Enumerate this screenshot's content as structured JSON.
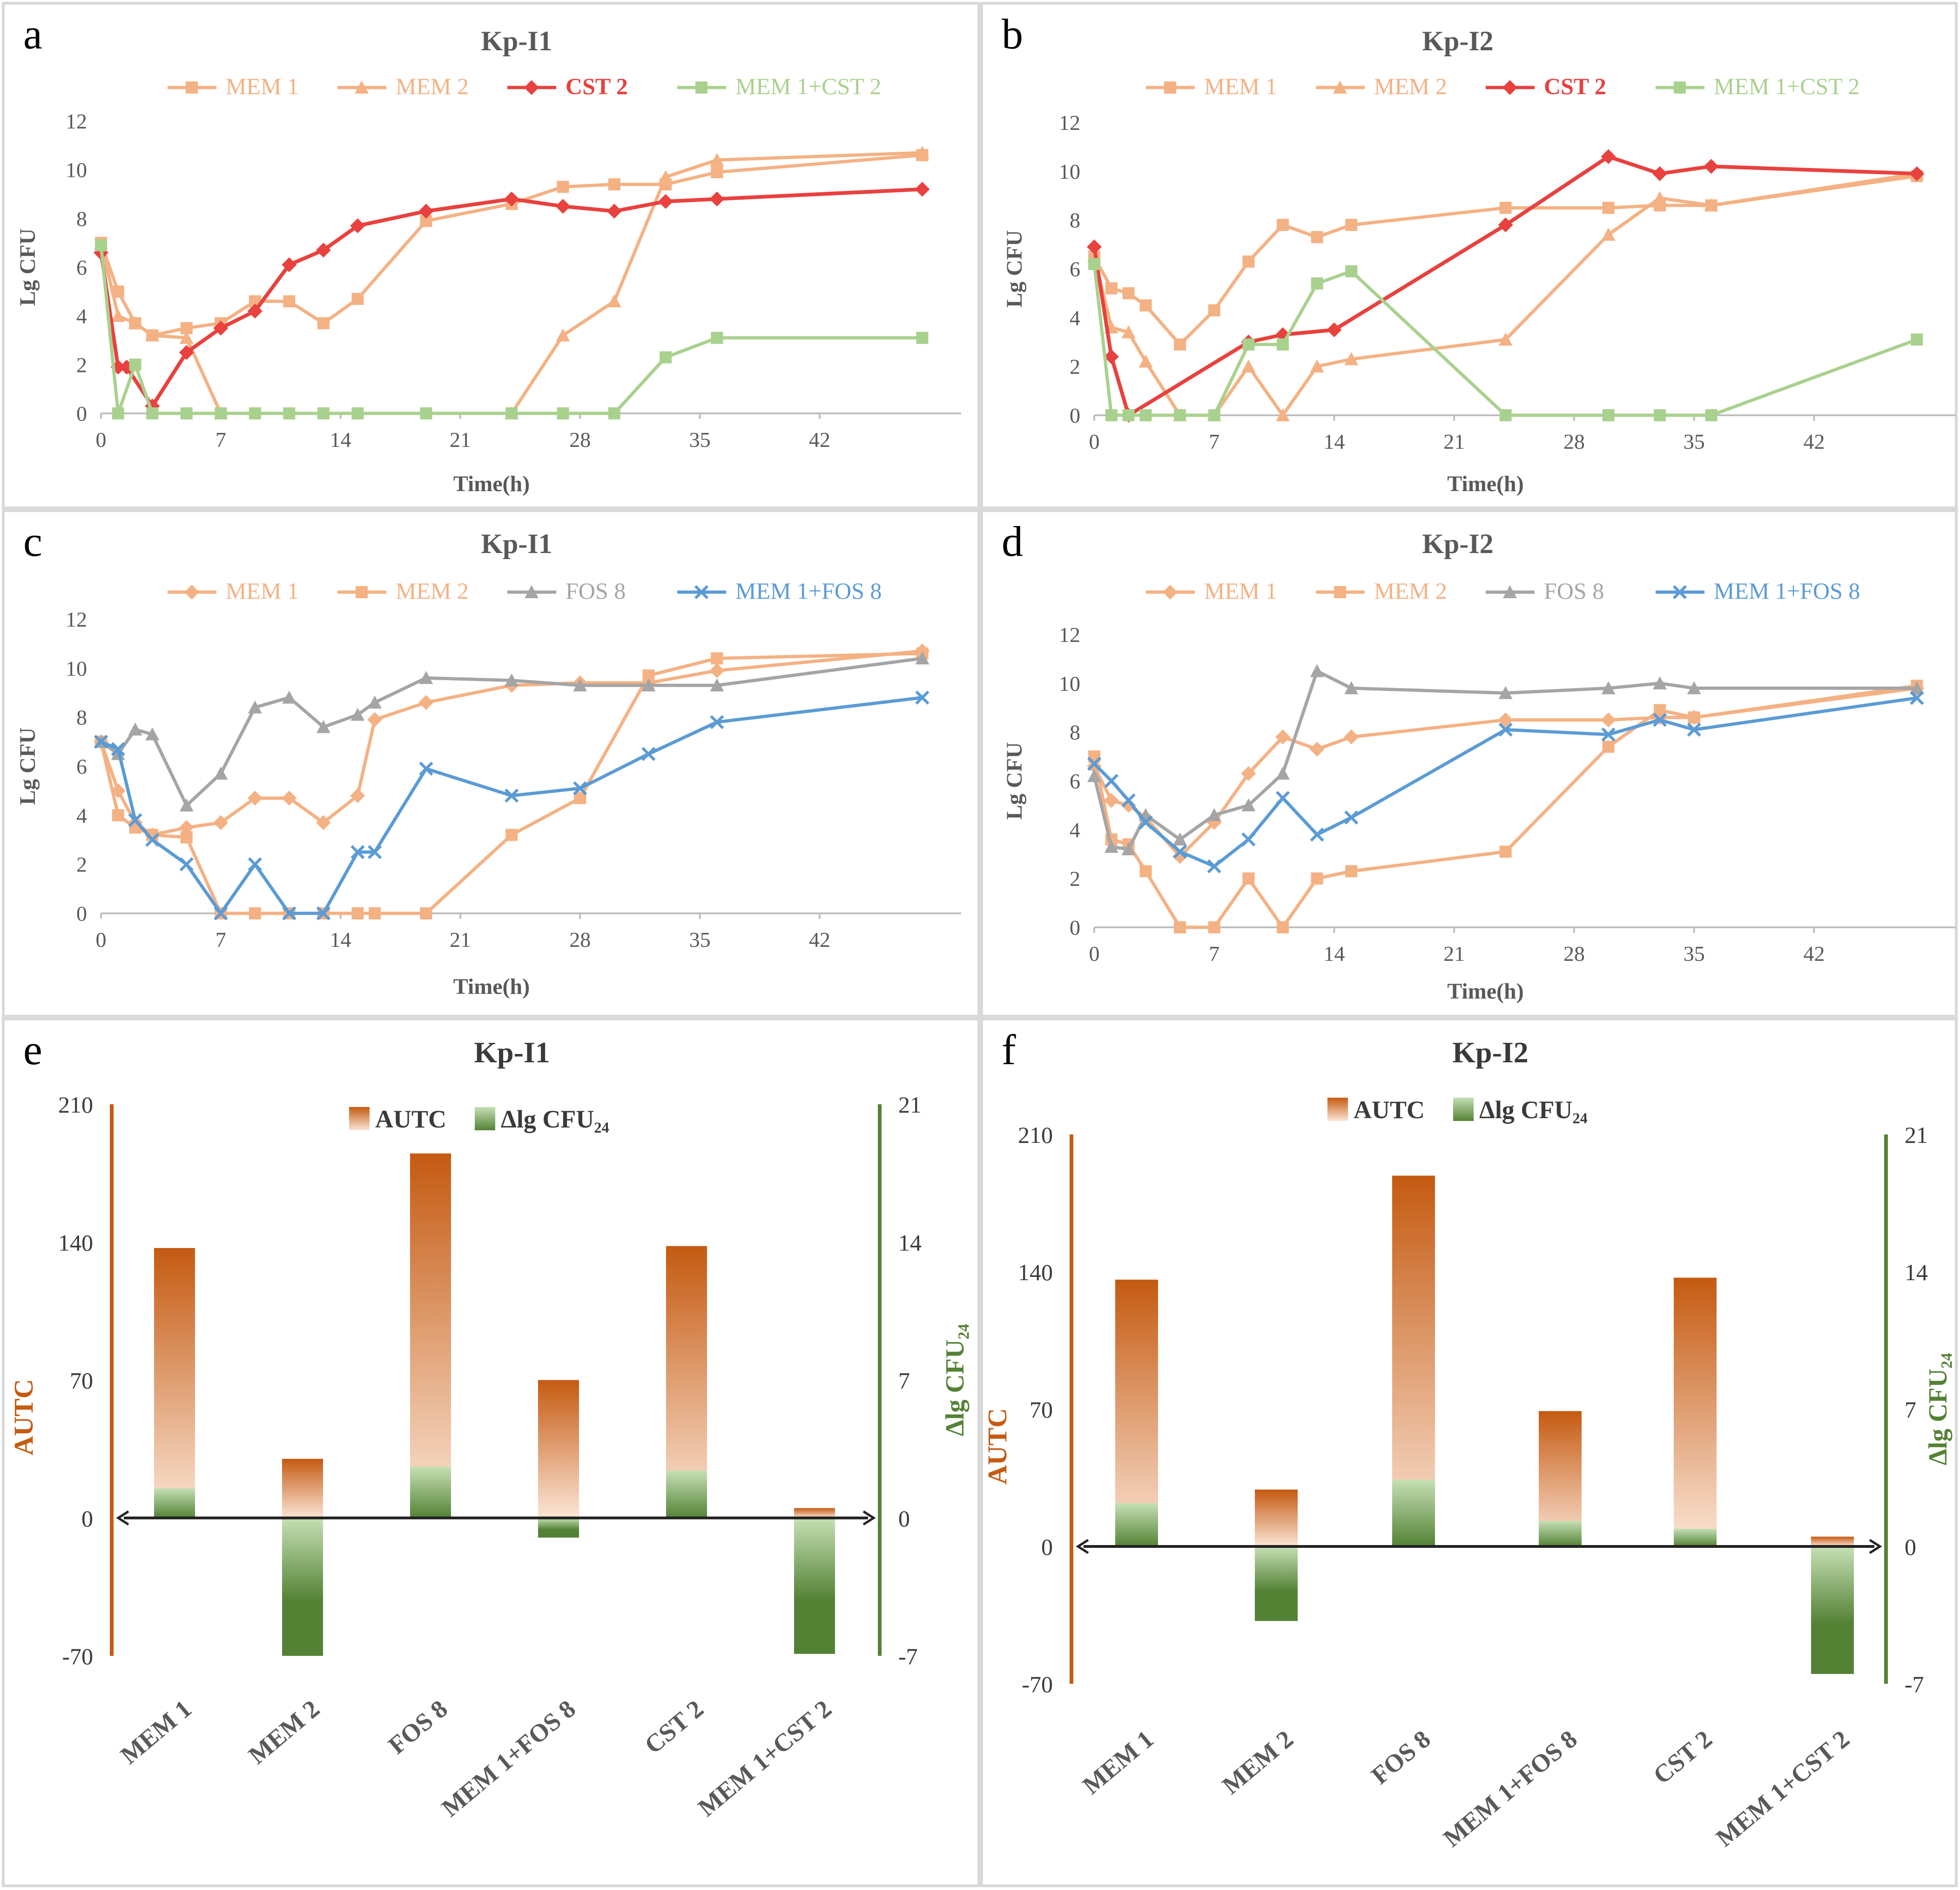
{
  "colors": {
    "mem1": "#F4B183",
    "mem2": "#F4B183",
    "cst2": "#E8413E",
    "mem1cst2": "#A9D18E",
    "fos8": "#A5A5A5",
    "mem1fos8": "#5B9BD5",
    "autc_dark": "#C55A11",
    "autc_light": "#FBE5D6",
    "dlg_dark": "#548235",
    "dlg_light": "#C5E0B4",
    "axis_orange": "#C55A11",
    "axis_green": "#548235",
    "text_gray": "#595959",
    "grid_axis": "#BFBFBF"
  },
  "chart_data": [
    {
      "panel": "a",
      "type": "line",
      "title": "Kp-I1",
      "xlabel": "Time(h)",
      "ylabel": "Lg CFU",
      "xlim": [
        0,
        50
      ],
      "ylim": [
        0,
        12
      ],
      "xticks": [
        "0",
        "7",
        "14",
        "21",
        "28",
        "35",
        "42"
      ],
      "yticks": [
        "0",
        "2",
        "4",
        "6",
        "8",
        "10",
        "12"
      ],
      "series": [
        {
          "name": "MEM 1",
          "marker": "square",
          "color_key": "mem1",
          "x": [
            0,
            1,
            2,
            3,
            5,
            7,
            9,
            11,
            13,
            15,
            19,
            24,
            27,
            30,
            33,
            36,
            48
          ],
          "y": [
            7.0,
            5.0,
            3.7,
            3.2,
            3.5,
            3.7,
            4.6,
            4.6,
            3.7,
            4.7,
            7.9,
            8.6,
            9.3,
            9.4,
            9.4,
            9.9,
            10.6
          ]
        },
        {
          "name": "MEM 2",
          "marker": "triangle",
          "color_key": "mem2",
          "x": [
            0,
            1,
            2,
            3,
            5,
            7,
            24,
            27,
            30,
            33,
            36,
            48
          ],
          "y": [
            7.0,
            4.0,
            3.7,
            3.2,
            3.1,
            0,
            0,
            3.2,
            4.6,
            9.7,
            10.4,
            10.7
          ]
        },
        {
          "name": "CST 2",
          "marker": "diamond",
          "color_key": "cst2",
          "x": [
            0,
            1,
            1.5,
            3,
            5,
            7,
            9,
            11,
            13,
            15,
            19,
            24,
            27,
            30,
            33,
            36,
            48
          ],
          "y": [
            6.6,
            1.9,
            1.9,
            0.3,
            2.5,
            3.5,
            4.2,
            6.1,
            6.7,
            7.7,
            8.3,
            8.8,
            8.5,
            8.3,
            8.7,
            8.8,
            9.2
          ]
        },
        {
          "name": "MEM 1+CST 2",
          "marker": "square",
          "color_key": "mem1cst2",
          "x": [
            0,
            1,
            2,
            3,
            5,
            7,
            9,
            11,
            13,
            15,
            19,
            24,
            27,
            30,
            33,
            36,
            48
          ],
          "y": [
            6.9,
            0,
            2.0,
            0,
            0,
            0,
            0,
            0,
            0,
            0,
            0,
            0,
            0,
            0,
            2.3,
            3.1,
            3.1
          ]
        }
      ]
    },
    {
      "panel": "b",
      "type": "line",
      "title": "Kp-I2",
      "xlabel": "Time(h)",
      "ylabel": "Lg CFU",
      "xlim": [
        0,
        50
      ],
      "ylim": [
        0,
        12
      ],
      "xticks": [
        "0",
        "7",
        "14",
        "21",
        "28",
        "35",
        "42"
      ],
      "yticks": [
        "0",
        "2",
        "4",
        "6",
        "8",
        "10",
        "12"
      ],
      "series": [
        {
          "name": "MEM 1",
          "marker": "square",
          "color_key": "mem1",
          "x": [
            0,
            1,
            2,
            3,
            5,
            7,
            9,
            11,
            13,
            15,
            24,
            30,
            33,
            36,
            48
          ],
          "y": [
            6.5,
            5.2,
            5.0,
            4.5,
            2.9,
            4.3,
            6.3,
            7.8,
            7.3,
            7.8,
            8.5,
            8.5,
            8.6,
            8.6,
            9.8
          ]
        },
        {
          "name": "MEM 2",
          "marker": "triangle",
          "color_key": "mem2",
          "x": [
            0,
            1,
            2,
            3,
            5,
            7,
            9,
            11,
            13,
            15,
            24,
            30,
            33,
            36,
            48
          ],
          "y": [
            6.5,
            3.6,
            3.4,
            2.2,
            0,
            0,
            2.0,
            0,
            2.0,
            2.3,
            3.1,
            7.4,
            8.9,
            8.6,
            9.9
          ]
        },
        {
          "name": "CST 2",
          "marker": "diamond",
          "color_key": "cst2",
          "x": [
            0,
            1,
            2,
            9,
            11,
            14,
            24,
            30,
            33,
            36,
            48
          ],
          "y": [
            6.9,
            2.4,
            0,
            3.0,
            3.3,
            3.5,
            7.8,
            10.6,
            9.9,
            10.2,
            9.9
          ]
        },
        {
          "name": "MEM 1+CST 2",
          "marker": "square",
          "color_key": "mem1cst2",
          "x": [
            0,
            1,
            2,
            3,
            5,
            7,
            9,
            11,
            13,
            15,
            24,
            30,
            33,
            36,
            48
          ],
          "y": [
            6.2,
            0,
            0,
            0,
            0,
            0,
            2.9,
            2.9,
            5.4,
            5.9,
            0,
            0,
            0,
            0,
            3.1
          ]
        }
      ]
    },
    {
      "panel": "c",
      "type": "line",
      "title": "Kp-I1",
      "xlabel": "Time(h)",
      "ylabel": "Lg CFU",
      "xlim": [
        0,
        50
      ],
      "ylim": [
        0,
        12
      ],
      "xticks": [
        "0",
        "7",
        "14",
        "21",
        "28",
        "35",
        "42"
      ],
      "yticks": [
        "0",
        "2",
        "4",
        "6",
        "8",
        "10",
        "12"
      ],
      "series": [
        {
          "name": "MEM 1",
          "marker": "diamond",
          "color_key": "mem1",
          "x": [
            0,
            1,
            2,
            3,
            5,
            7,
            9,
            11,
            13,
            15,
            16,
            19,
            24,
            28,
            32,
            36,
            48
          ],
          "y": [
            7.0,
            5.0,
            3.7,
            3.2,
            3.5,
            3.7,
            4.7,
            4.7,
            3.7,
            4.8,
            7.9,
            8.6,
            9.3,
            9.4,
            9.4,
            9.9,
            10.7
          ]
        },
        {
          "name": "MEM 2",
          "marker": "square",
          "color_key": "mem2",
          "x": [
            0,
            1,
            2,
            3,
            5,
            7,
            9,
            11,
            13,
            15,
            16,
            19,
            24,
            28,
            32,
            36,
            48
          ],
          "y": [
            7.0,
            4.0,
            3.5,
            3.2,
            3.1,
            0,
            0,
            0,
            0,
            0,
            0,
            0,
            3.2,
            4.7,
            9.7,
            10.4,
            10.6
          ]
        },
        {
          "name": "FOS 8",
          "marker": "triangle",
          "color_key": "fos8",
          "x": [
            0,
            1,
            2,
            3,
            5,
            7,
            9,
            11,
            13,
            15,
            16,
            19,
            24,
            28,
            32,
            36,
            48
          ],
          "y": [
            7.0,
            6.5,
            7.5,
            7.3,
            4.4,
            5.7,
            8.4,
            8.8,
            7.6,
            8.1,
            8.6,
            9.6,
            9.5,
            9.3,
            9.3,
            9.3,
            10.4
          ]
        },
        {
          "name": "MEM 1+FOS 8",
          "marker": "x",
          "color_key": "mem1fos8",
          "x": [
            0,
            1,
            2,
            3,
            5,
            7,
            9,
            11,
            13,
            15,
            16,
            19,
            24,
            28,
            32,
            36,
            48
          ],
          "y": [
            7.0,
            6.7,
            3.8,
            3.0,
            2.0,
            0,
            2.0,
            0,
            0,
            2.5,
            2.5,
            5.9,
            4.8,
            5.1,
            6.5,
            7.8,
            8.8
          ]
        }
      ]
    },
    {
      "panel": "d",
      "type": "line",
      "title": "Kp-I2",
      "xlabel": "Time(h)",
      "ylabel": "Lg CFU",
      "xlim": [
        0,
        50
      ],
      "ylim": [
        0,
        12
      ],
      "xticks": [
        "0",
        "7",
        "14",
        "21",
        "28",
        "35",
        "42"
      ],
      "yticks": [
        "0",
        "2",
        "4",
        "6",
        "8",
        "10",
        "12"
      ],
      "series": [
        {
          "name": "MEM 1",
          "marker": "diamond",
          "color_key": "mem1",
          "x": [
            0,
            1,
            2,
            3,
            5,
            7,
            9,
            11,
            13,
            15,
            24,
            30,
            33,
            35,
            48
          ],
          "y": [
            6.6,
            5.2,
            5.0,
            4.5,
            2.9,
            4.3,
            6.3,
            7.8,
            7.3,
            7.8,
            8.5,
            8.5,
            8.6,
            8.6,
            9.8
          ]
        },
        {
          "name": "MEM 2",
          "marker": "square",
          "color_key": "mem2",
          "x": [
            0,
            1,
            2,
            3,
            5,
            7,
            9,
            11,
            13,
            15,
            24,
            30,
            33,
            35,
            48
          ],
          "y": [
            7.0,
            3.6,
            3.4,
            2.3,
            0,
            0,
            2.0,
            0,
            2.0,
            2.3,
            3.1,
            7.4,
            8.9,
            8.6,
            9.9
          ]
        },
        {
          "name": "FOS 8",
          "marker": "triangle",
          "color_key": "fos8",
          "x": [
            0,
            1,
            2,
            3,
            5,
            7,
            9,
            11,
            13,
            15,
            24,
            30,
            33,
            35,
            48
          ],
          "y": [
            6.2,
            3.3,
            3.2,
            4.6,
            3.6,
            4.6,
            5.0,
            6.3,
            10.5,
            9.8,
            9.6,
            9.8,
            10.0,
            9.8,
            9.8
          ]
        },
        {
          "name": "MEM 1+FOS 8",
          "marker": "x",
          "color_key": "mem1fos8",
          "x": [
            0,
            1,
            2,
            3,
            5,
            7,
            9,
            11,
            13,
            15,
            24,
            30,
            33,
            35,
            48
          ],
          "y": [
            6.7,
            6.0,
            5.2,
            4.3,
            3.1,
            2.5,
            3.6,
            5.3,
            3.8,
            4.5,
            8.1,
            7.9,
            8.5,
            8.1,
            9.4
          ]
        }
      ]
    },
    {
      "panel": "e",
      "type": "bar",
      "title": "Kp-I1",
      "legend": [
        "AUTC",
        "Δlg CFU₂₄"
      ],
      "ylabel_left": "AUTC",
      "ylabel_right": "Δlg CFU₂₄",
      "ylim_left": [
        -70,
        210
      ],
      "ylim_right": [
        -7,
        21
      ],
      "yticks_left": [
        "-70",
        "0",
        "70",
        "140",
        "210"
      ],
      "yticks_right": [
        "-7",
        "0",
        "7",
        "14",
        "21"
      ],
      "categories": [
        "MEM 1",
        "MEM 2",
        "FOS 8",
        "MEM 1+FOS 8",
        "CST 2",
        "MEM 1+CST 2"
      ],
      "series": [
        {
          "name": "AUTC",
          "axis": "left",
          "values": [
            137,
            30,
            185,
            70,
            138,
            5
          ]
        },
        {
          "name": "Δlg CFU₂₄",
          "axis": "right",
          "values": [
            1.5,
            -7.0,
            2.6,
            -1.0,
            2.4,
            -6.9
          ]
        }
      ]
    },
    {
      "panel": "f",
      "type": "bar",
      "title": "Kp-I2",
      "legend": [
        "AUTC",
        "Δlg CFU₂₄"
      ],
      "ylabel_left": "AUTC",
      "ylabel_right": "Δlg CFU₂₄",
      "ylim_left": [
        -70,
        210
      ],
      "ylim_right": [
        -7,
        21
      ],
      "yticks_left": [
        "-70",
        "0",
        "70",
        "140",
        "210"
      ],
      "yticks_right": [
        "-7",
        "0",
        "7",
        "14",
        "21"
      ],
      "categories": [
        "MEM 1",
        "MEM 2",
        "FOS 8",
        "MEM 1+FOS 8",
        "CST 2",
        "MEM 1+CST 2"
      ],
      "series": [
        {
          "name": "AUTC",
          "axis": "left",
          "values": [
            136,
            29,
            189,
            69,
            137,
            5
          ]
        },
        {
          "name": "Δlg CFU₂₄",
          "axis": "right",
          "values": [
            2.2,
            -3.8,
            3.4,
            1.3,
            0.9,
            -6.5
          ]
        }
      ]
    }
  ]
}
